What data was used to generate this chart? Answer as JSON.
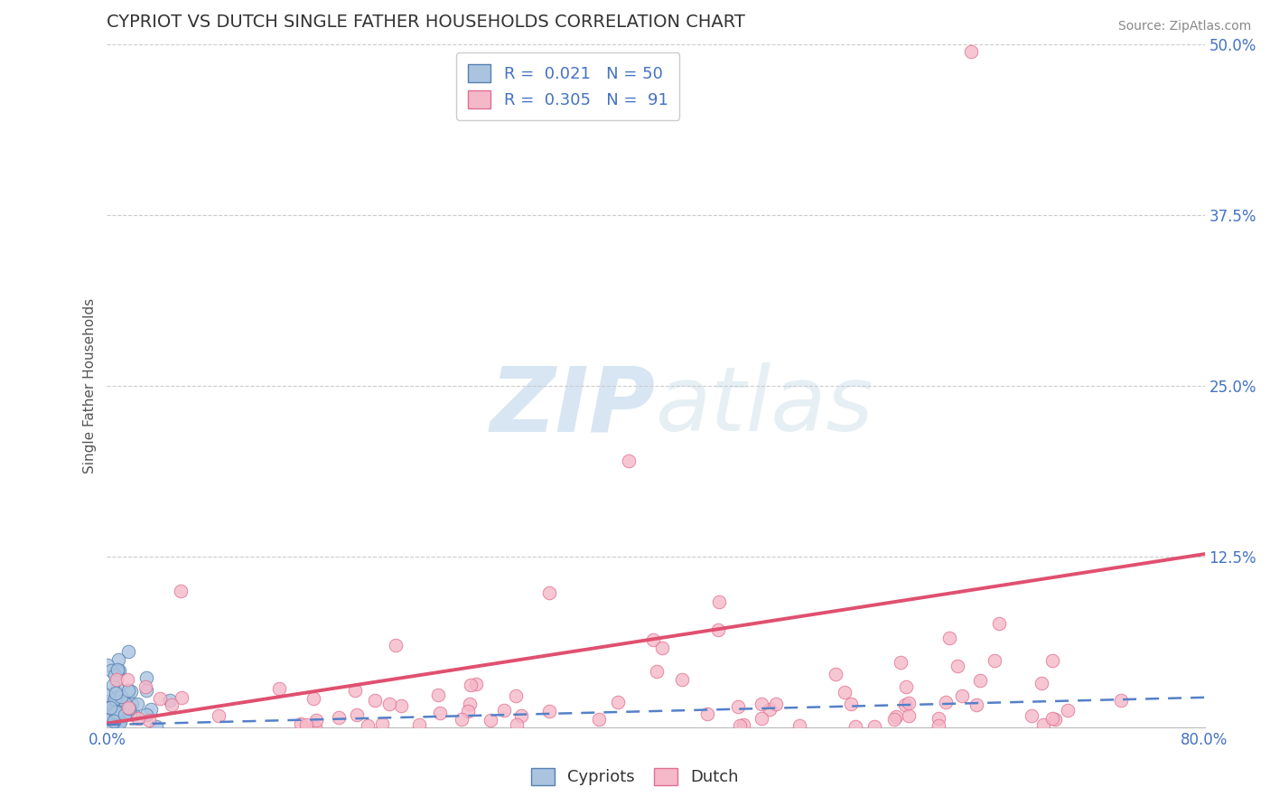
{
  "title": "CYPRIOT VS DUTCH SINGLE FATHER HOUSEHOLDS CORRELATION CHART",
  "source_text": "Source: ZipAtlas.com",
  "ylabel": "Single Father Households",
  "watermark_zip": "ZIP",
  "watermark_atlas": "atlas",
  "xlim": [
    0.0,
    0.8
  ],
  "ylim": [
    0.0,
    0.5
  ],
  "yticks": [
    0.0,
    0.125,
    0.25,
    0.375,
    0.5
  ],
  "ytick_labels": [
    "",
    "12.5%",
    "25.0%",
    "37.5%",
    "50.0%"
  ],
  "background_color": "#ffffff",
  "grid_color": "#cccccc",
  "title_color": "#333333",
  "axis_label_color": "#4472c4",
  "cypriot_color": "#aac4e0",
  "cypriot_edge_color": "#5580b0",
  "dutch_color": "#f5b8c8",
  "dutch_edge_color": "#e07090",
  "cypriot_line_color": "#5580c8",
  "dutch_line_color": "#e05070",
  "cypriot_R": 0.021,
  "cypriot_N": 50,
  "dutch_R": 0.305,
  "dutch_N": 91,
  "marker_size": 110,
  "title_fontsize": 14,
  "label_fontsize": 11,
  "tick_fontsize": 12,
  "legend_fontsize": 13,
  "source_fontsize": 10
}
